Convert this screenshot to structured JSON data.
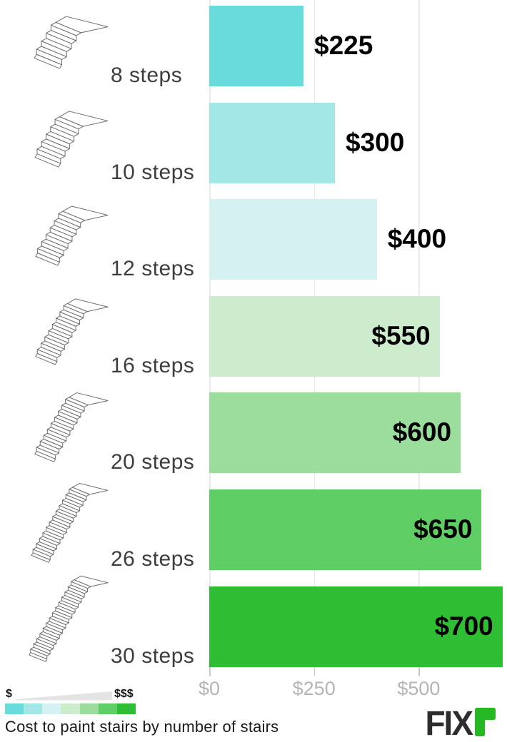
{
  "chart_data": {
    "type": "bar",
    "orientation": "horizontal",
    "title": "Cost to paint stairs by number of stairs",
    "categories": [
      "8 steps",
      "10 steps",
      "12 steps",
      "16 steps",
      "20 steps",
      "26 steps",
      "30 steps"
    ],
    "steps": [
      8,
      10,
      12,
      16,
      20,
      26,
      30
    ],
    "values": [
      225,
      300,
      400,
      550,
      600,
      650,
      700
    ],
    "value_labels": [
      "$225",
      "$300",
      "$400",
      "$550",
      "$600",
      "$650",
      "$700"
    ],
    "bar_colors": [
      "#68dcdc",
      "#a3e7e7",
      "#d5f1f2",
      "#cdecce",
      "#9add9d",
      "#5fce64",
      "#2fbe33"
    ],
    "xlabel": "",
    "ylabel": "",
    "x_axis": {
      "ticks": [
        0,
        250,
        500
      ],
      "tick_labels": [
        "$0",
        "$250",
        "$500"
      ],
      "range": [
        0,
        712
      ]
    },
    "grid": true,
    "legend": {
      "position": "bottom-left",
      "low_label": "$",
      "high_label": "$$$",
      "colors": [
        "#68dcdc",
        "#a3e7e7",
        "#d5f1f2",
        "#cdecce",
        "#9add9d",
        "#5fce64",
        "#2fbe33"
      ]
    }
  },
  "footer": {
    "logo_text": "FIX",
    "logo_mark": "green-gamma-mark",
    "logo_green": "#25b822"
  }
}
